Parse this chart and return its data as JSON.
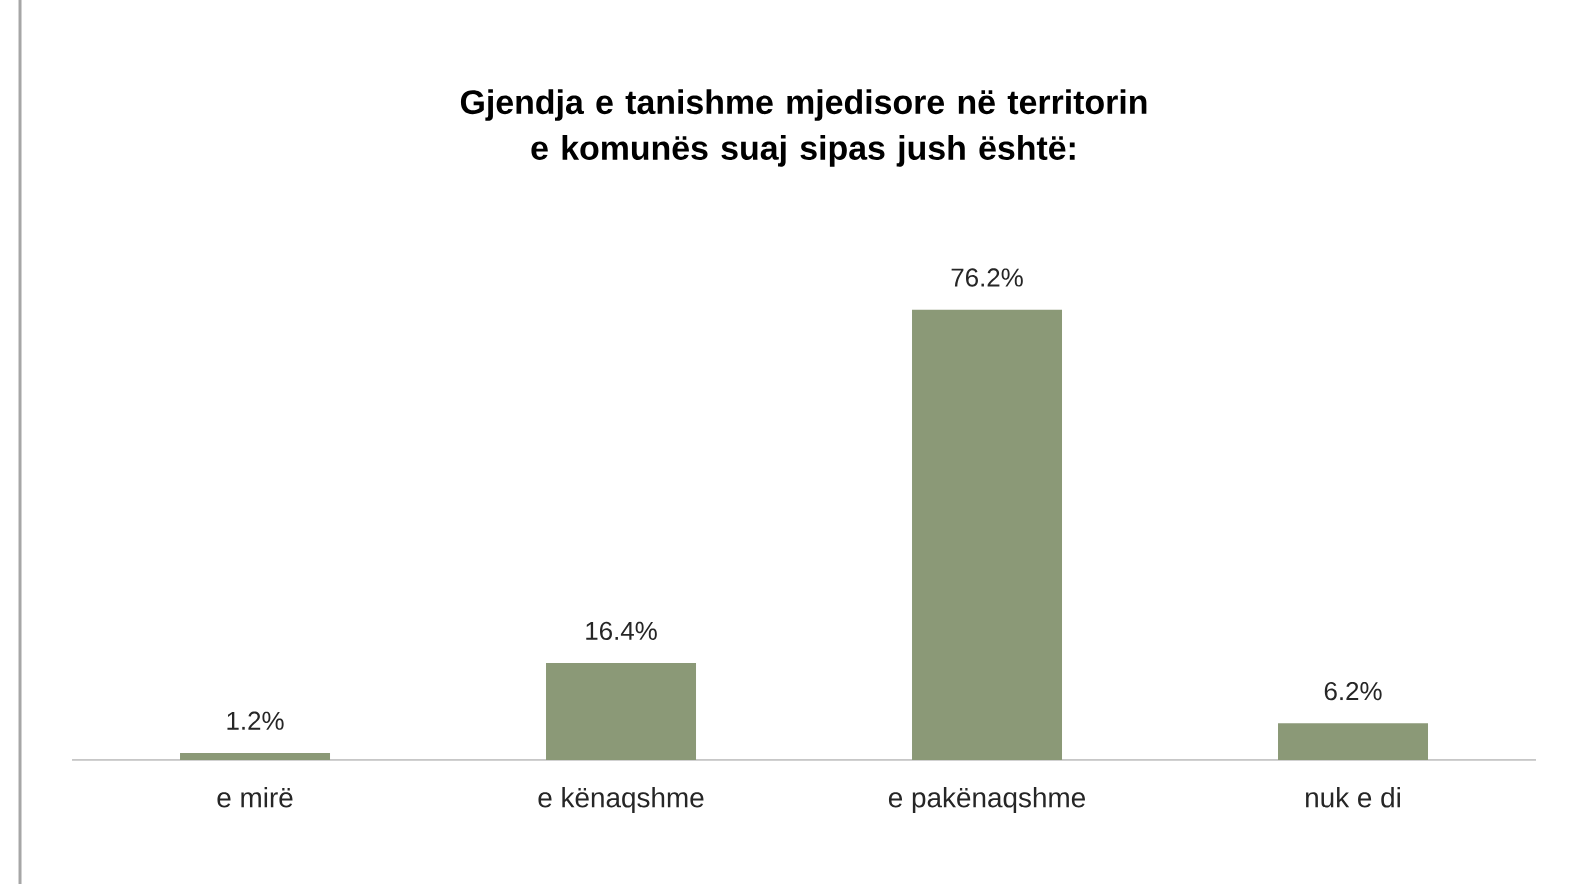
{
  "chart_data": {
    "type": "bar",
    "title": "Gjendja e tanishme mjedisore në territorin e komunës suaj sipas jush është:",
    "categories": [
      "e mirë",
      "e kënaqshme",
      "e pakënaqshme",
      "nuk e di"
    ],
    "values": [
      1.2,
      16.4,
      76.2,
      6.2
    ],
    "value_labels": [
      "1.2%",
      "16.4%",
      "76.2%",
      "6.2%"
    ],
    "color": "#8b9977"
  }
}
